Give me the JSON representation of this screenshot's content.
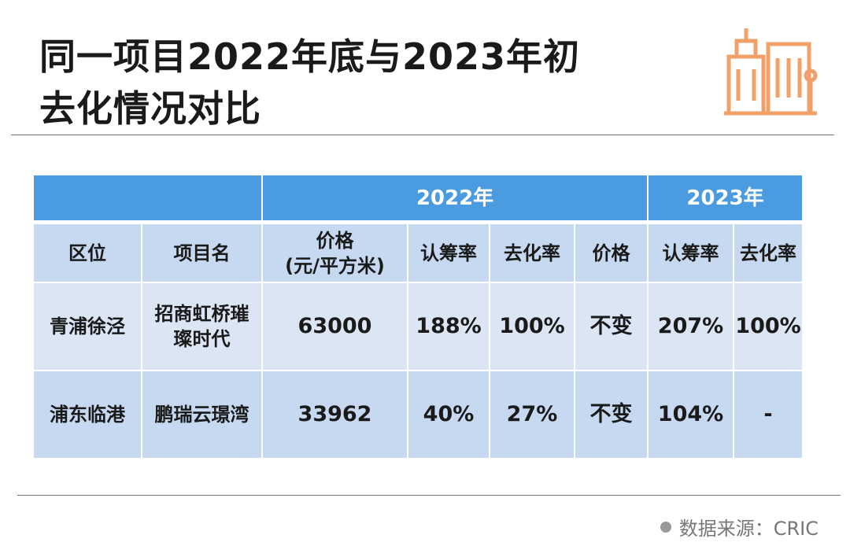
{
  "header": {
    "title_lines": [
      "同一项目2022年底与2023年初",
      "去化情况对比"
    ]
  },
  "table": {
    "group_headers": [
      "2022年",
      "2023年"
    ],
    "columns": [
      [
        "区位"
      ],
      [
        "项目名"
      ],
      [
        "价格",
        "(元/平方米)"
      ],
      [
        "认筹率"
      ],
      [
        "去化率"
      ],
      [
        "价格"
      ],
      [
        "认筹率"
      ],
      [
        "去化率"
      ]
    ],
    "rows": [
      [
        "青浦徐泾",
        "招商虹桥璀璨时代",
        "63000",
        "188%",
        "100%",
        "不变",
        "207%",
        "100%"
      ],
      [
        "浦东临港",
        "鹏瑞云璟湾",
        "33962",
        "40%",
        "27%",
        "不变",
        "104%",
        "-"
      ]
    ]
  },
  "footer": {
    "source": "数据来源：CRIC"
  }
}
